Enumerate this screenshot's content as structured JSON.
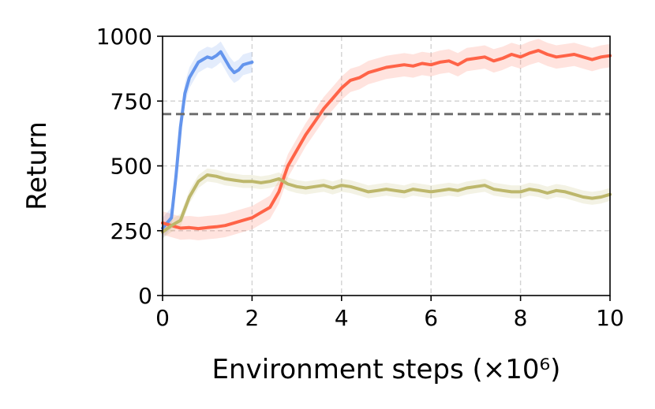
{
  "chart_data": {
    "type": "line",
    "title": "",
    "xlabel": "Environment steps (×10⁶)",
    "ylabel": "Return",
    "xlim": [
      0,
      10
    ],
    "ylim": [
      0,
      1000
    ],
    "xticks": [
      0,
      2,
      4,
      6,
      8,
      10
    ],
    "yticks": [
      0,
      250,
      500,
      750,
      1000
    ],
    "xtick_labels": [
      "0",
      "2",
      "4",
      "6",
      "8",
      "10"
    ],
    "ytick_labels": [
      "0",
      "250",
      "500",
      "750",
      "1000"
    ],
    "grid": true,
    "grid_style": "dashed",
    "reference_line": {
      "y": 700,
      "color": "#6e6e6e",
      "style": "dashed"
    },
    "series": [
      {
        "color": "#6495ED",
        "band": 40,
        "x": [
          0,
          0.1,
          0.2,
          0.3,
          0.4,
          0.5,
          0.6,
          0.7,
          0.8,
          0.9,
          1.0,
          1.1,
          1.2,
          1.3,
          1.4,
          1.5,
          1.6,
          1.7,
          1.8,
          1.9,
          2.0
        ],
        "y": [
          260,
          280,
          300,
          460,
          650,
          780,
          840,
          870,
          900,
          910,
          920,
          915,
          925,
          940,
          910,
          880,
          860,
          870,
          890,
          895,
          900
        ]
      },
      {
        "color": "#FF6347",
        "band": 45,
        "x": [
          0,
          0.2,
          0.4,
          0.6,
          0.8,
          1.0,
          1.2,
          1.4,
          1.6,
          1.8,
          2.0,
          2.2,
          2.4,
          2.6,
          2.8,
          3.0,
          3.2,
          3.4,
          3.6,
          3.8,
          4.0,
          4.2,
          4.4,
          4.6,
          4.8,
          5.0,
          5.2,
          5.4,
          5.6,
          5.8,
          6.0,
          6.2,
          6.4,
          6.6,
          6.8,
          7.0,
          7.2,
          7.4,
          7.6,
          7.8,
          8.0,
          8.2,
          8.4,
          8.6,
          8.8,
          9.0,
          9.2,
          9.4,
          9.6,
          9.8,
          10.0
        ],
        "y": [
          280,
          270,
          260,
          262,
          258,
          262,
          265,
          270,
          280,
          290,
          300,
          320,
          340,
          400,
          500,
          560,
          620,
          670,
          720,
          760,
          800,
          830,
          840,
          860,
          870,
          880,
          885,
          890,
          885,
          895,
          890,
          900,
          905,
          890,
          910,
          915,
          920,
          905,
          915,
          930,
          920,
          935,
          945,
          930,
          920,
          925,
          930,
          920,
          910,
          920,
          925
        ]
      },
      {
        "color": "#BDB76B",
        "band": 25,
        "x": [
          0,
          0.2,
          0.4,
          0.6,
          0.8,
          1.0,
          1.2,
          1.4,
          1.6,
          1.8,
          2.0,
          2.2,
          2.4,
          2.6,
          2.8,
          3.0,
          3.2,
          3.4,
          3.6,
          3.8,
          4.0,
          4.2,
          4.4,
          4.6,
          4.8,
          5.0,
          5.2,
          5.4,
          5.6,
          5.8,
          6.0,
          6.2,
          6.4,
          6.6,
          6.8,
          7.0,
          7.2,
          7.4,
          7.6,
          7.8,
          8.0,
          8.2,
          8.4,
          8.6,
          8.8,
          9.0,
          9.2,
          9.4,
          9.6,
          9.8,
          10.0
        ],
        "y": [
          245,
          270,
          290,
          380,
          440,
          465,
          460,
          450,
          445,
          440,
          440,
          435,
          440,
          450,
          430,
          420,
          415,
          420,
          425,
          415,
          425,
          420,
          410,
          400,
          405,
          410,
          405,
          400,
          410,
          405,
          400,
          405,
          410,
          405,
          415,
          420,
          425,
          410,
          405,
          400,
          400,
          410,
          405,
          395,
          405,
          400,
          390,
          380,
          375,
          380,
          390
        ]
      }
    ]
  }
}
